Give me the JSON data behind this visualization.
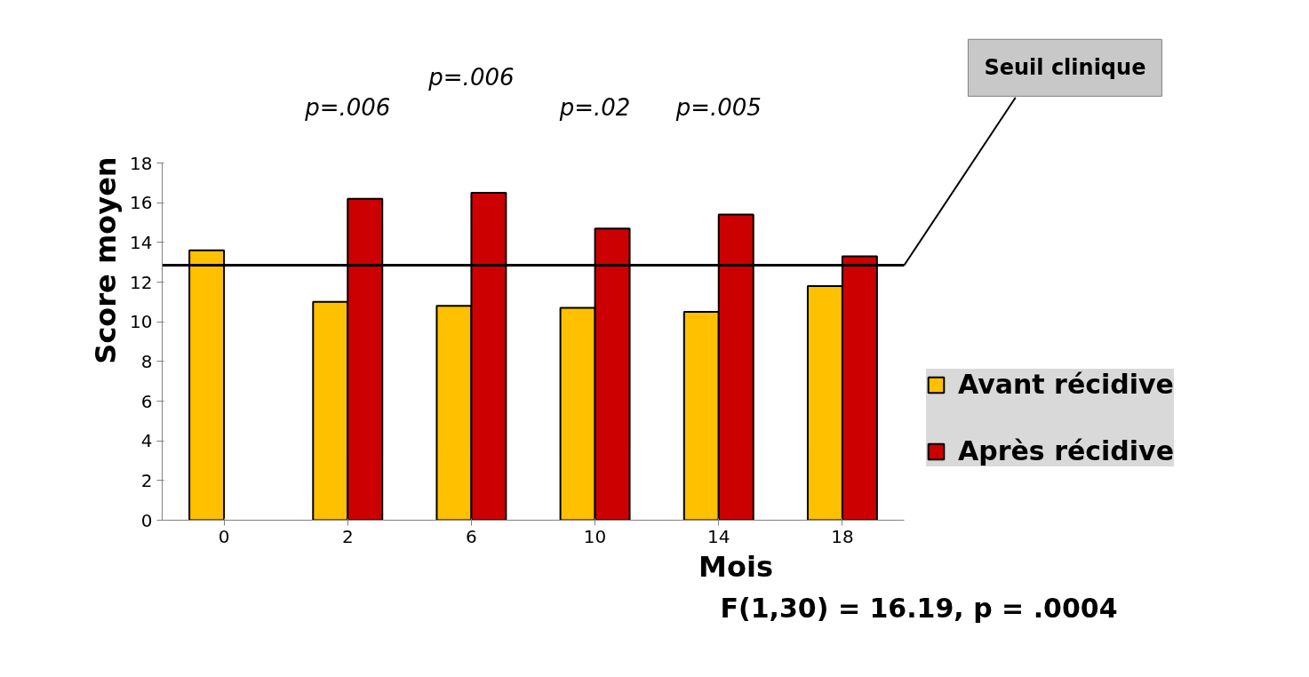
{
  "chart_data": {
    "type": "bar",
    "xlabel": "Mois",
    "ylabel": "Score moyen",
    "categories": [
      "0",
      "2",
      "6",
      "10",
      "14",
      "18"
    ],
    "series": [
      {
        "name": "Avant récidive",
        "color": "#ffc000",
        "values": [
          13.6,
          11.0,
          10.8,
          10.7,
          10.5,
          11.8
        ]
      },
      {
        "name": "Après récidive",
        "color": "#cc0000",
        "values": [
          null,
          16.2,
          16.5,
          14.7,
          15.4,
          13.3
        ]
      }
    ],
    "ylim": [
      0,
      18
    ],
    "yticks": [
      0,
      2,
      4,
      6,
      8,
      10,
      12,
      14,
      16,
      18
    ],
    "ref_lines": [
      {
        "axis": "y",
        "value": 12.85,
        "label": "Seuil clinique",
        "color": "#000000"
      }
    ],
    "annotations": [
      "p=.006",
      "p=.006",
      "p=.02",
      "p=.005",
      "F(1,30) = 16.19, p = .0004"
    ],
    "legend": "right",
    "grid": false
  }
}
